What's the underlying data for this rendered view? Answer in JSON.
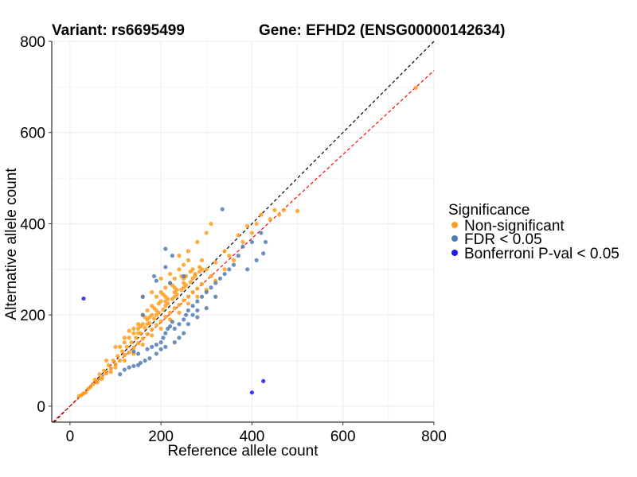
{
  "chart_data": {
    "type": "scatter",
    "title_left": "Variant: rs6695499",
    "title_right": "Gene: EFHD2 (ENSG00000142634)",
    "xlabel": "Reference allele count",
    "ylabel": "Alternative allele count",
    "xlim": [
      -40,
      800
    ],
    "ylim": [
      -35,
      800
    ],
    "x_ticks": [
      0,
      200,
      400,
      600,
      800
    ],
    "y_ticks": [
      0,
      200,
      400,
      600,
      800
    ],
    "x_tick_labels": [
      "0",
      "200",
      "400",
      "600",
      "800"
    ],
    "y_tick_labels": [
      "0",
      "200",
      "400",
      "600",
      "800"
    ],
    "grid": true,
    "legend": {
      "title": "Significance",
      "placement": "right",
      "entries": [
        {
          "label": "Non-significant",
          "color": "#ff9e1b"
        },
        {
          "label": "FDR < 0.05",
          "color": "#4f7cb3"
        },
        {
          "label": "Bonferroni P-val < 0.05",
          "color": "#1a1aff"
        }
      ]
    },
    "reference_lines": [
      {
        "kind": "identity",
        "slope": 1.0,
        "intercept": 0,
        "color": "#000000",
        "style": "dashed"
      },
      {
        "kind": "fit",
        "slope": 0.92,
        "intercept": 0,
        "color": "#ff0000",
        "style": "dashed"
      }
    ],
    "series": [
      {
        "name": "Non-significant",
        "color": "#ff9e1b",
        "points": [
          [
            20,
            22
          ],
          [
            30,
            28
          ],
          [
            40,
            38
          ],
          [
            50,
            48
          ],
          [
            55,
            58
          ],
          [
            60,
            55
          ],
          [
            65,
            70
          ],
          [
            70,
            62
          ],
          [
            75,
            78
          ],
          [
            80,
            72
          ],
          [
            85,
            90
          ],
          [
            90,
            82
          ],
          [
            95,
            100
          ],
          [
            100,
            92
          ],
          [
            105,
            110
          ],
          [
            110,
            100
          ],
          [
            115,
            120
          ],
          [
            120,
            112
          ],
          [
            125,
            130
          ],
          [
            130,
            118
          ],
          [
            135,
            140
          ],
          [
            140,
            128
          ],
          [
            145,
            150
          ],
          [
            150,
            138
          ],
          [
            155,
            160
          ],
          [
            160,
            148
          ],
          [
            165,
            172
          ],
          [
            170,
            158
          ],
          [
            175,
            182
          ],
          [
            180,
            168
          ],
          [
            185,
            192
          ],
          [
            190,
            178
          ],
          [
            195,
            205
          ],
          [
            200,
            186
          ],
          [
            205,
            212
          ],
          [
            210,
            196
          ],
          [
            215,
            225
          ],
          [
            220,
            205
          ],
          [
            225,
            235
          ],
          [
            230,
            215
          ],
          [
            235,
            245
          ],
          [
            240,
            222
          ],
          [
            245,
            255
          ],
          [
            250,
            232
          ],
          [
            255,
            265
          ],
          [
            260,
            240
          ],
          [
            265,
            272
          ],
          [
            270,
            250
          ],
          [
            275,
            285
          ],
          [
            280,
            258
          ],
          [
            285,
            295
          ],
          [
            290,
            268
          ],
          [
            300,
            300
          ],
          [
            310,
            285
          ],
          [
            320,
            315
          ],
          [
            340,
            340
          ],
          [
            350,
            330
          ],
          [
            370,
            375
          ],
          [
            380,
            360
          ],
          [
            390,
            395
          ],
          [
            400,
            380
          ],
          [
            410,
            400
          ],
          [
            420,
            420
          ],
          [
            440,
            410
          ],
          [
            450,
            430
          ],
          [
            460,
            420
          ],
          [
            470,
            430
          ],
          [
            500,
            428
          ],
          [
            760,
            698
          ],
          [
            120,
            150
          ],
          [
            140,
            170
          ],
          [
            150,
            180
          ],
          [
            160,
            200
          ],
          [
            170,
            210
          ],
          [
            180,
            220
          ],
          [
            190,
            240
          ],
          [
            200,
            250
          ],
          [
            210,
            260
          ],
          [
            220,
            270
          ],
          [
            230,
            280
          ],
          [
            240,
            300
          ],
          [
            250,
            310
          ],
          [
            260,
            320
          ],
          [
            200,
            280
          ],
          [
            220,
            290
          ],
          [
            180,
            250
          ],
          [
            100,
            130
          ],
          [
            130,
            165
          ],
          [
            80,
            100
          ],
          [
            240,
            330
          ],
          [
            260,
            340
          ],
          [
            280,
            360
          ],
          [
            300,
            380
          ],
          [
            310,
            400
          ],
          [
            160,
            240
          ],
          [
            150,
            160
          ],
          [
            170,
            190
          ],
          [
            190,
            200
          ],
          [
            210,
            220
          ],
          [
            230,
            240
          ],
          [
            250,
            260
          ],
          [
            270,
            280
          ],
          [
            290,
            300
          ],
          [
            110,
            130
          ],
          [
            130,
            150
          ],
          [
            150,
            170
          ],
          [
            170,
            180
          ],
          [
            190,
            210
          ],
          [
            210,
            230
          ],
          [
            230,
            260
          ],
          [
            250,
            280
          ],
          [
            270,
            300
          ],
          [
            290,
            320
          ],
          [
            140,
            115
          ],
          [
            160,
            135
          ],
          [
            180,
            155
          ],
          [
            200,
            170
          ],
          [
            220,
            190
          ],
          [
            240,
            205
          ],
          [
            260,
            225
          ],
          [
            280,
            240
          ],
          [
            300,
            255
          ],
          [
            320,
            275
          ],
          [
            340,
            300
          ],
          [
            360,
            320
          ],
          [
            120,
            100
          ],
          [
            100,
            85
          ],
          [
            90,
            75
          ],
          [
            70,
            60
          ],
          [
            60,
            52
          ],
          [
            45,
            42
          ],
          [
            35,
            30
          ],
          [
            25,
            24
          ],
          [
            210,
            240
          ],
          [
            230,
            250
          ],
          [
            250,
            270
          ],
          [
            200,
            230
          ],
          [
            180,
            200
          ],
          [
            160,
            180
          ],
          [
            140,
            160
          ],
          [
            120,
            140
          ],
          [
            165,
            195
          ],
          [
            185,
            215
          ],
          [
            205,
            245
          ],
          [
            225,
            265
          ],
          [
            245,
            285
          ],
          [
            265,
            295
          ],
          [
            285,
            305
          ],
          [
            155,
            175
          ],
          [
            175,
            195
          ],
          [
            195,
            225
          ],
          [
            215,
            235
          ],
          [
            235,
            255
          ],
          [
            255,
            285
          ],
          [
            275,
            290
          ]
        ]
      },
      {
        "name": "FDR < 0.05",
        "color": "#4f7cb3",
        "points": [
          [
            335,
            432
          ],
          [
            210,
            345
          ],
          [
            225,
            330
          ],
          [
            210,
            305
          ],
          [
            185,
            285
          ],
          [
            160,
            200
          ],
          [
            190,
            275
          ],
          [
            220,
            270
          ],
          [
            250,
            285
          ],
          [
            160,
            240
          ],
          [
            140,
            120
          ],
          [
            150,
            115
          ],
          [
            170,
            125
          ],
          [
            180,
            130
          ],
          [
            190,
            135
          ],
          [
            200,
            140
          ],
          [
            205,
            150
          ],
          [
            210,
            160
          ],
          [
            215,
            170
          ],
          [
            220,
            175
          ],
          [
            230,
            170
          ],
          [
            240,
            180
          ],
          [
            250,
            190
          ],
          [
            255,
            200
          ],
          [
            260,
            210
          ],
          [
            270,
            220
          ],
          [
            280,
            230
          ],
          [
            290,
            240
          ],
          [
            300,
            250
          ],
          [
            310,
            260
          ],
          [
            320,
            270
          ],
          [
            330,
            280
          ],
          [
            270,
            200
          ],
          [
            280,
            210
          ],
          [
            250,
            160
          ],
          [
            240,
            150
          ],
          [
            230,
            140
          ],
          [
            210,
            130
          ],
          [
            190,
            115
          ],
          [
            175,
            105
          ],
          [
            165,
            100
          ],
          [
            155,
            95
          ],
          [
            150,
            90
          ],
          [
            130,
            85
          ],
          [
            110,
            70
          ],
          [
            120,
            80
          ],
          [
            140,
            88
          ],
          [
            200,
            125
          ],
          [
            260,
            180
          ],
          [
            300,
            215
          ],
          [
            320,
            240
          ],
          [
            340,
            290
          ],
          [
            350,
            300
          ],
          [
            360,
            310
          ],
          [
            370,
            330
          ],
          [
            380,
            350
          ],
          [
            400,
            360
          ],
          [
            430,
            360
          ],
          [
            425,
            335
          ],
          [
            410,
            320
          ],
          [
            420,
            380
          ],
          [
            390,
            300
          ],
          [
            280,
            195
          ],
          [
            225,
            185
          ]
        ]
      },
      {
        "name": "Bonferroni P-val < 0.05",
        "color": "#1a1aff",
        "points": [
          [
            30,
            236
          ],
          [
            400,
            30
          ],
          [
            425,
            55
          ]
        ]
      }
    ]
  }
}
